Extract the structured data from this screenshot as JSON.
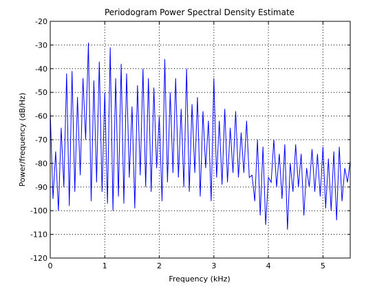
{
  "chart_data": {
    "type": "line",
    "title": "Periodogram Power Spectral Density Estimate",
    "xlabel": "Frequency (kHz)",
    "ylabel": "Power/frequency (dB/Hz)",
    "xlim": [
      0,
      5.5
    ],
    "ylim": [
      -120,
      -20
    ],
    "xticks": [
      0,
      1,
      2,
      3,
      4,
      5
    ],
    "yticks": [
      -120,
      -110,
      -100,
      -90,
      -80,
      -70,
      -60,
      -50,
      -40,
      -30,
      -20
    ],
    "xtick_labels": [
      "0",
      "1",
      "2",
      "3",
      "4",
      "5"
    ],
    "ytick_labels": [
      "-120",
      "-110",
      "-100",
      "-90",
      "-80",
      "-70",
      "-60",
      "-50",
      "-40",
      "-30",
      "-20"
    ],
    "grid": true,
    "grid_style": "dotted",
    "line_color": "#0000ff",
    "series": [
      {
        "x": [
          0,
          0.05,
          0.1,
          0.15,
          0.2,
          0.25,
          0.3,
          0.35,
          0.4,
          0.45,
          0.5,
          0.55,
          0.6,
          0.65,
          0.7,
          0.75,
          0.8,
          0.85,
          0.9,
          0.95,
          1.0,
          1.05,
          1.1,
          1.15,
          1.2,
          1.25,
          1.3,
          1.35,
          1.4,
          1.45,
          1.5,
          1.55,
          1.6,
          1.65,
          1.7,
          1.75,
          1.8,
          1.85,
          1.9,
          1.95,
          2.0,
          2.05,
          2.1,
          2.15,
          2.2,
          2.25,
          2.3,
          2.35,
          2.4,
          2.45,
          2.5,
          2.55,
          2.6,
          2.65,
          2.7,
          2.75,
          2.8,
          2.85,
          2.9,
          2.95,
          3.0,
          3.05,
          3.1,
          3.15,
          3.2,
          3.25,
          3.3,
          3.35,
          3.4,
          3.45,
          3.5,
          3.55,
          3.6,
          3.65,
          3.7,
          3.75,
          3.8,
          3.85,
          3.9,
          3.95,
          4.0,
          4.05,
          4.1,
          4.15,
          4.2,
          4.25,
          4.3,
          4.35,
          4.4,
          4.45,
          4.5,
          4.55,
          4.6,
          4.65,
          4.7,
          4.75,
          4.8,
          4.85,
          4.9,
          4.95,
          5.0,
          5.05,
          5.1,
          5.15,
          5.2,
          5.25,
          5.3,
          5.35,
          5.4,
          5.45,
          5.5
        ],
        "y": [
          -58,
          -95,
          -75,
          -100,
          -65,
          -90,
          -42,
          -98,
          -41,
          -92,
          -52,
          -85,
          -44,
          -70,
          -29,
          -96,
          -45,
          -88,
          -37,
          -92,
          -50,
          -97,
          -31,
          -100,
          -44,
          -94,
          -38,
          -97,
          -42,
          -86,
          -56,
          -99,
          -47,
          -85,
          -40,
          -90,
          -44,
          -92,
          -48,
          -82,
          -60,
          -96,
          -36,
          -88,
          -50,
          -84,
          -44,
          -86,
          -57,
          -90,
          -40,
          -92,
          -55,
          -84,
          -52,
          -94,
          -58,
          -82,
          -62,
          -96,
          -44,
          -86,
          -62,
          -89,
          -57,
          -88,
          -65,
          -84,
          -58,
          -86,
          -67,
          -84,
          -62,
          -86,
          -85,
          -96,
          -70,
          -102,
          -73,
          -106,
          -86,
          -88,
          -70,
          -90,
          -76,
          -95,
          -72,
          -108,
          -80,
          -92,
          -72,
          -90,
          -76,
          -102,
          -82,
          -90,
          -74,
          -92,
          -76,
          -94,
          -73,
          -99,
          -78,
          -100,
          -75,
          -104,
          -73,
          -96,
          -82,
          -88,
          -79
        ]
      }
    ]
  }
}
